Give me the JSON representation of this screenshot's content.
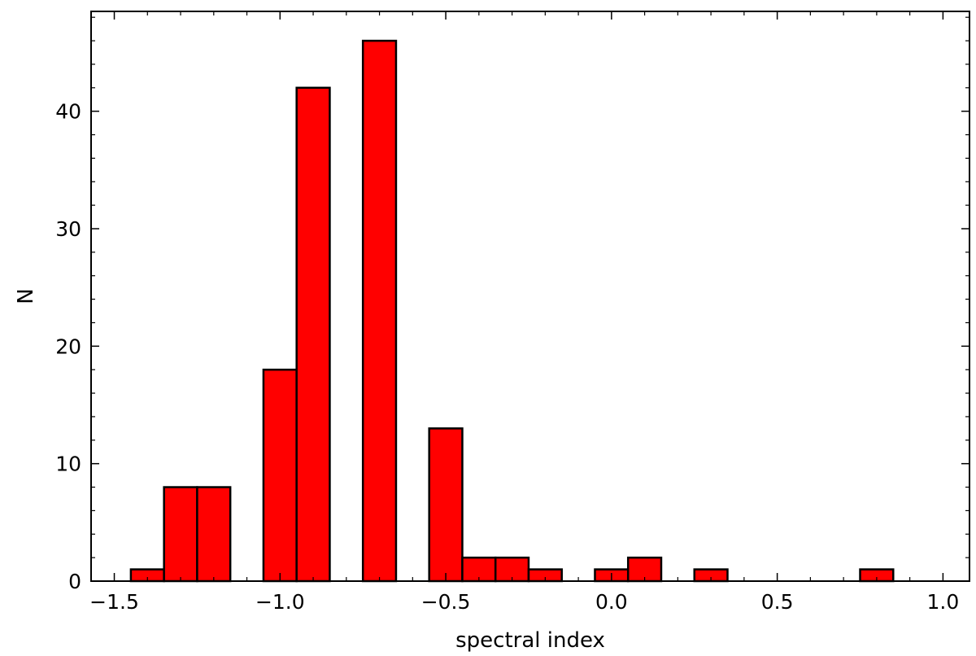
{
  "chart_data": {
    "type": "bar",
    "title": "",
    "xlabel": "spectral index",
    "ylabel": "N",
    "xlim": [
      -1.57,
      1.08
    ],
    "ylim": [
      0,
      48.5
    ],
    "bin_width": 0.1,
    "bins": [
      {
        "x": -1.4,
        "value": 1
      },
      {
        "x": -1.3,
        "value": 8
      },
      {
        "x": -1.2,
        "value": 8
      },
      {
        "x": -1.0,
        "value": 18
      },
      {
        "x": -0.9,
        "value": 42
      },
      {
        "x": -0.7,
        "value": 46
      },
      {
        "x": -0.5,
        "value": 13
      },
      {
        "x": -0.4,
        "value": 2
      },
      {
        "x": -0.3,
        "value": 2
      },
      {
        "x": -0.2,
        "value": 1
      },
      {
        "x": 0.0,
        "value": 1
      },
      {
        "x": 0.1,
        "value": 2
      },
      {
        "x": 0.3,
        "value": 1
      },
      {
        "x": 0.8,
        "value": 1
      }
    ],
    "x_ticks": [
      {
        "value": -1.5,
        "label": "−1.5"
      },
      {
        "value": -1.0,
        "label": "−1.0"
      },
      {
        "value": -0.5,
        "label": "−0.5"
      },
      {
        "value": 0.0,
        "label": "0.0"
      },
      {
        "value": 0.5,
        "label": "0.5"
      },
      {
        "value": 1.0,
        "label": "1.0"
      }
    ],
    "y_ticks": [
      {
        "value": 0,
        "label": "0"
      },
      {
        "value": 10,
        "label": "10"
      },
      {
        "value": 20,
        "label": "20"
      },
      {
        "value": 30,
        "label": "30"
      },
      {
        "value": 40,
        "label": "40"
      }
    ],
    "grid": false,
    "legend": "none",
    "bar_color": "#ff0000",
    "edge_color": "#000000"
  }
}
